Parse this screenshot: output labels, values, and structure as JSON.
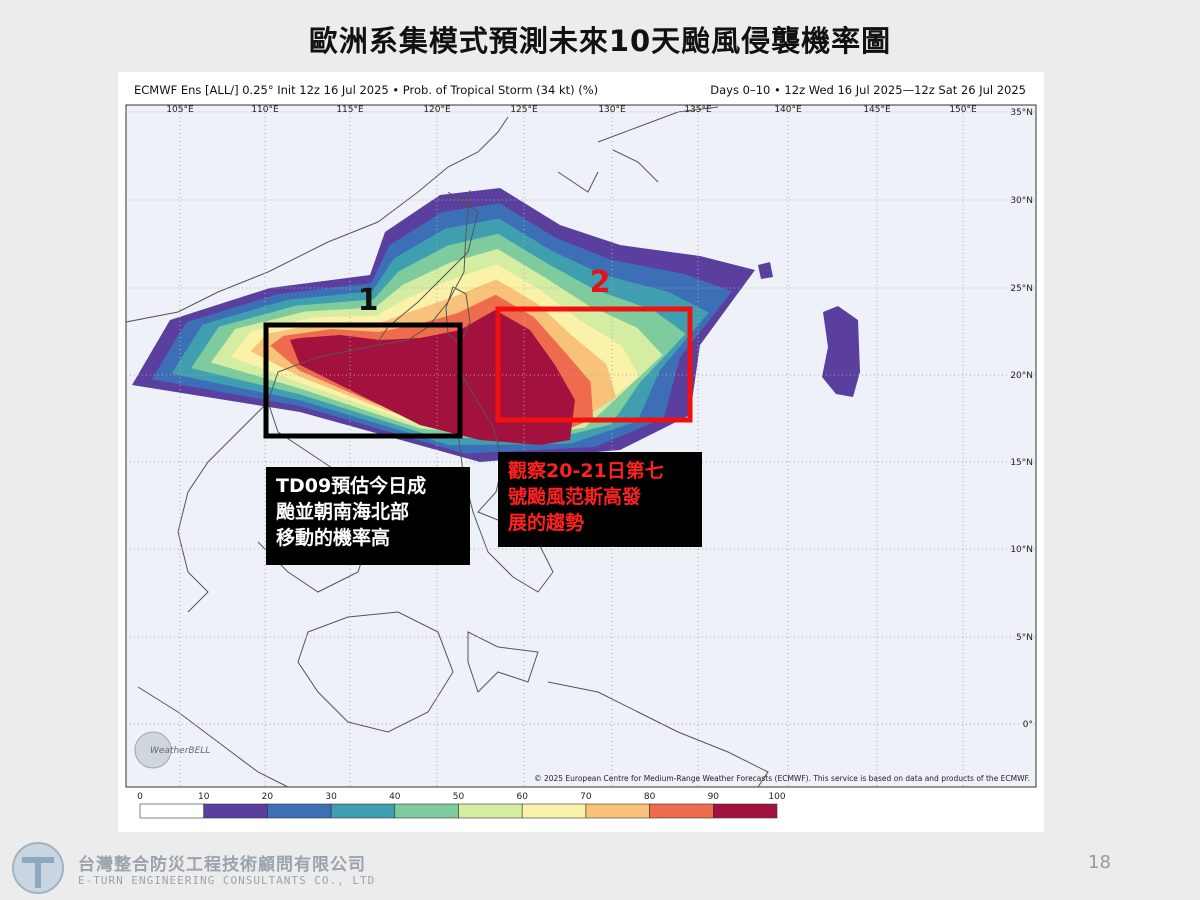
{
  "title": "歐洲系集模式預測未來10天颱風侵襲機率圖",
  "map": {
    "header_left": "ECMWF Ens [ALL/] 0.25° Init 12z 16 Jul 2025 • Prob. of Tropical Storm (34 kt) (%)",
    "header_right": "Days 0–10 • 12z Wed 16 Jul 2025—12z Sat 26 Jul 2025",
    "longitudes": [
      "105°E",
      "110°E",
      "115°E",
      "120°E",
      "125°E",
      "130°E",
      "135°E",
      "140°E",
      "145°E",
      "150°E"
    ],
    "latitudes": [
      "35°N",
      "30°N",
      "25°N",
      "20°N",
      "15°N",
      "10°N",
      "5°N",
      "0°"
    ],
    "copyright": "© 2025 European Centre for Medium-Range Weather Forecasts (ECMWF). This service is based on data and products of the ECMWF.",
    "logo": "WeatherBELL",
    "colorbar": {
      "ticks": [
        0,
        10,
        20,
        30,
        40,
        50,
        60,
        70,
        80,
        90,
        100
      ],
      "colors": [
        "#ffffff",
        "#5a3f9e",
        "#3d6fb6",
        "#3f9fb0",
        "#7ecb9d",
        "#d4eda3",
        "#fbf2a9",
        "#f9c27a",
        "#ee6c4d",
        "#a3123e"
      ]
    }
  },
  "annotations": [
    {
      "label": "1",
      "text_lines": [
        "TD09預估今日成",
        "颱並朝南海北部",
        "移動的機率高"
      ]
    },
    {
      "label": "2",
      "text_lines": [
        "觀察20-21日第七",
        "號颱風范斯高發",
        "展的趨勢"
      ]
    }
  ],
  "footer": {
    "company": "台灣整合防災工程技術顧問有限公司",
    "company_en": "E-TURN ENGINEERING CONSULTANTS CO., LTD",
    "page": "18"
  }
}
